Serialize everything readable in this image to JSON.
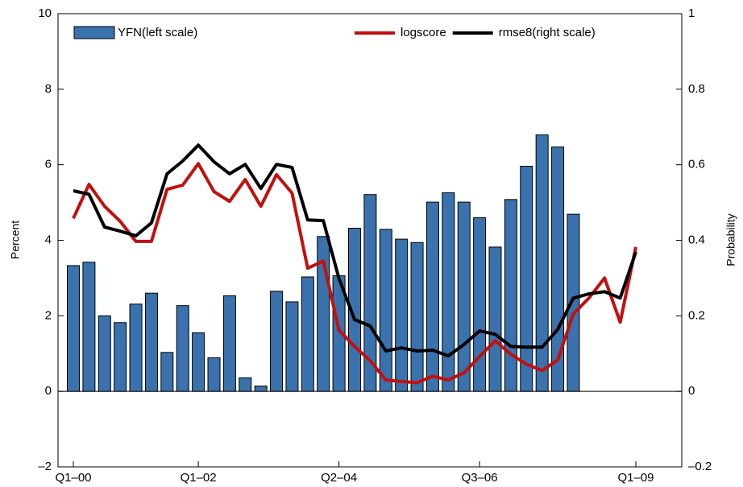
{
  "chart_data": {
    "type": "bar",
    "categories": [
      "Q1–00",
      null,
      null,
      null,
      null,
      null,
      null,
      null,
      "Q1–02",
      null,
      null,
      null,
      null,
      null,
      null,
      null,
      null,
      "Q2–04",
      null,
      null,
      null,
      null,
      null,
      null,
      null,
      null,
      "Q3–06",
      null,
      null,
      null,
      null,
      null,
      null,
      null,
      null,
      null,
      "Q1–09"
    ],
    "y_label": "Percent",
    "y2_label": "Probability",
    "ylim": [
      -2,
      10
    ],
    "yticks": [
      {
        "value": -2,
        "label": "–2"
      },
      0,
      2,
      4,
      6,
      8,
      10
    ],
    "y2lim": [
      -0.2,
      1
    ],
    "y2ticks": [
      {
        "value": -0.2,
        "label": "–0.2"
      },
      0,
      0.2,
      0.4,
      0.6,
      0.8,
      1
    ],
    "series": [
      {
        "name": "YFN(left scale)",
        "type": "bar",
        "color": "#3a72ad",
        "values": [
          3.33,
          3.42,
          2.0,
          1.82,
          2.31,
          2.6,
          1.03,
          2.27,
          1.55,
          0.89,
          2.53,
          0.36,
          0.14,
          2.65,
          2.37,
          3.03,
          4.1,
          3.06,
          4.32,
          5.21,
          4.29,
          4.03,
          3.94,
          5.01,
          5.26,
          5.01,
          4.6,
          3.82,
          5.08,
          5.96,
          6.79,
          6.47,
          4.69,
          0,
          0,
          0,
          0
        ]
      },
      {
        "name": "logscore",
        "type": "line",
        "axis": "y2",
        "color": "#c0110f",
        "values": [
          0.458,
          0.548,
          0.49,
          0.45,
          0.397,
          0.397,
          0.535,
          0.546,
          0.603,
          0.529,
          0.503,
          0.561,
          0.49,
          0.574,
          0.525,
          0.326,
          0.345,
          0.162,
          0.119,
          0.081,
          0.03,
          0.026,
          0.023,
          0.04,
          0.03,
          0.049,
          0.092,
          0.134,
          0.098,
          0.072,
          0.055,
          0.083,
          0.205,
          0.247,
          0.3,
          0.183,
          0.382
        ]
      },
      {
        "name": "rmse8(right scale)",
        "type": "line",
        "axis": "y2",
        "color": "#000000",
        "values": [
          0.531,
          0.522,
          0.435,
          0.424,
          0.412,
          0.446,
          0.576,
          0.61,
          0.652,
          0.608,
          0.576,
          0.601,
          0.537,
          0.601,
          0.593,
          0.454,
          0.452,
          0.299,
          0.19,
          0.173,
          0.107,
          0.115,
          0.107,
          0.109,
          0.094,
          0.124,
          0.16,
          0.151,
          0.119,
          0.117,
          0.117,
          0.164,
          0.247,
          0.258,
          0.264,
          0.247,
          0.369
        ]
      }
    ]
  }
}
